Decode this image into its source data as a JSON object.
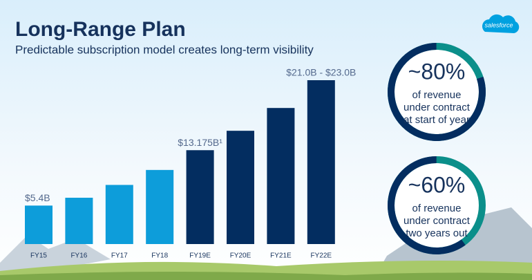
{
  "chart_data": {
    "type": "bar",
    "title": "Long-Range Plan",
    "subtitle": "Predictable subscription model creates long-term visibility",
    "categories": [
      "FY15",
      "FY16",
      "FY17",
      "FY18",
      "FY19E",
      "FY20E",
      "FY21E",
      "FY22E"
    ],
    "values": [
      5.4,
      6.5,
      8.3,
      10.4,
      13.175,
      15.9,
      19.1,
      23.0
    ],
    "value_labels": [
      "$5.4B",
      null,
      null,
      null,
      "$13.175B¹",
      null,
      null,
      "$21.0B - $23.0B"
    ],
    "colors": [
      "#0d9dda",
      "#0d9dda",
      "#0d9dda",
      "#0d9dda",
      "#032d60",
      "#032d60",
      "#032d60",
      "#032d60"
    ]
  },
  "logo": "salesforce",
  "gauges": [
    {
      "value": 80,
      "label": "~80%",
      "caption": [
        "of revenue",
        "under contract",
        "at start of year"
      ],
      "color": "#032d60",
      "rest_color": "#0b8f8a"
    },
    {
      "value": 60,
      "label": "~60%",
      "caption": [
        "of revenue",
        "under contract",
        "two years out"
      ],
      "color": "#032d60",
      "rest_color": "#0b8f8a"
    }
  ]
}
